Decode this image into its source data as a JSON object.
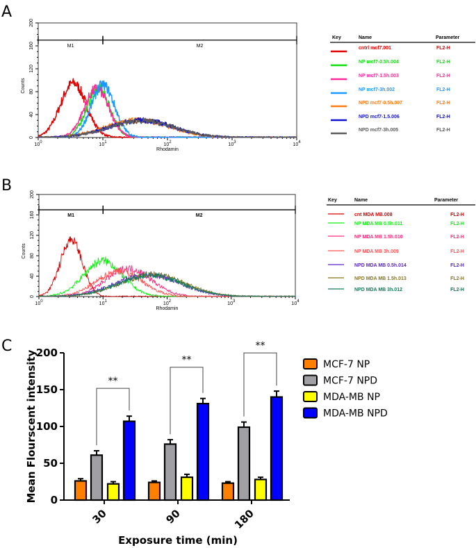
{
  "panels": {
    "a": "A",
    "b": "B",
    "c": "C"
  },
  "chart_data": [
    {
      "type": "line",
      "title": "",
      "xlabel": "Rhodamin",
      "ylabel": "Counts",
      "xscale": "log",
      "xlim": [
        1,
        10000
      ],
      "ylim": [
        0,
        200
      ],
      "xticks": [
        "10^0",
        "10^1",
        "10^2",
        "10^3",
        "10^4"
      ],
      "yticks": [
        "0",
        "40",
        "80",
        "120",
        "160",
        "200"
      ],
      "markers": [
        {
          "label": "M1",
          "range": [
            1,
            10
          ]
        },
        {
          "label": "M2",
          "range": [
            10,
            10000
          ]
        }
      ],
      "legend": {
        "headers": [
          "Key",
          "Name",
          "Parameter"
        ],
        "position": "right"
      },
      "series": [
        {
          "name": "cntrl mcf7.001",
          "parameter": "FL2-H",
          "color": "#e00000",
          "peak_rhodamin": 3.5,
          "peak_counts": 95,
          "spread": 0.2
        },
        {
          "name": "NP mcf7-0.5h.004",
          "parameter": "FL2-H",
          "color": "#10dd10",
          "peak_rhodamin": 8.5,
          "peak_counts": 85,
          "spread": 0.18
        },
        {
          "name": "NP mcf7-1.5h.003",
          "parameter": "FL2-H",
          "color": "#ff2a9a",
          "peak_rhodamin": 8,
          "peak_counts": 85,
          "spread": 0.19
        },
        {
          "name": "NP mcf7-3h.002",
          "parameter": "FL2-H",
          "color": "#1a98ff",
          "peak_rhodamin": 10,
          "peak_counts": 92,
          "spread": 0.18
        },
        {
          "name": "NPD mcf7-0.5h.007",
          "parameter": "FL2-H",
          "color": "#ff7a10",
          "peak_rhodamin": 35,
          "peak_counts": 30,
          "spread": 0.5
        },
        {
          "name": "NPD mcf7-1.5.006",
          "parameter": "FL2-H",
          "color": "#1010d0",
          "peak_rhodamin": 40,
          "peak_counts": 30,
          "spread": 0.5
        },
        {
          "name": "NPD mcf7-3h.005",
          "parameter": "FL2-H",
          "color": "#5a5a5a",
          "peak_rhodamin": 40,
          "peak_counts": 29,
          "spread": 0.5
        }
      ]
    },
    {
      "type": "line",
      "title": "",
      "xlabel": "Rhodamin",
      "ylabel": "Counts",
      "xscale": "log",
      "xlim": [
        1,
        10000
      ],
      "ylim": [
        0,
        200
      ],
      "xticks": [
        "10^0",
        "10^1",
        "10^2",
        "10^3",
        "10^4"
      ],
      "yticks": [
        "0",
        "40",
        "80",
        "120",
        "160",
        "200"
      ],
      "markers": [
        {
          "label": "M1",
          "range": [
            1,
            10
          ]
        },
        {
          "label": "M2",
          "range": [
            10,
            10000
          ]
        }
      ],
      "legend": {
        "headers": [
          "Key",
          "Name",
          "Parameter"
        ],
        "position": "right"
      },
      "series": [
        {
          "name": "cnt MDA MB.008",
          "parameter": "FL2-H",
          "color": "#d00000",
          "peak_rhodamin": 3.2,
          "peak_counts": 112,
          "spread": 0.17
        },
        {
          "name": "NP MDA MB 0.5h.011",
          "parameter": "FL2-H",
          "color": "#10ee10",
          "peak_rhodamin": 10,
          "peak_counts": 70,
          "spread": 0.3
        },
        {
          "name": "NP MDA MB 1.5h.010",
          "parameter": "FL2-H",
          "color": "#ff2a80",
          "peak_rhodamin": 25,
          "peak_counts": 55,
          "spread": 0.35
        },
        {
          "name": "NP MDA MB 3h.009",
          "parameter": "FL2-H",
          "color": "#ff5050",
          "peak_rhodamin": 18,
          "peak_counts": 50,
          "spread": 0.35
        },
        {
          "name": "NPD MDA MB 0.5h.014",
          "parameter": "FL2-H",
          "color": "#5a22c8",
          "peak_rhodamin": 50,
          "peak_counts": 43,
          "spread": 0.5
        },
        {
          "name": "NPD MDA MB 1.5h.013",
          "parameter": "FL2-H",
          "color": "#857520",
          "peak_rhodamin": 60,
          "peak_counts": 43,
          "spread": 0.5
        },
        {
          "name": "NPD MDA MB 3h.012",
          "parameter": "FL2-H",
          "color": "#107a5a",
          "peak_rhodamin": 55,
          "peak_counts": 42,
          "spread": 0.5
        }
      ]
    },
    {
      "type": "bar",
      "title": "",
      "xlabel": "Exposure time (min)",
      "ylabel": "Mean Flourscent intensity",
      "ylim": [
        0,
        200
      ],
      "yticks": [
        "0",
        "50",
        "100",
        "150",
        "200"
      ],
      "categories": [
        "30",
        "90",
        "180"
      ],
      "legend": {
        "position": "right"
      },
      "series": [
        {
          "name": "MCF-7 NP",
          "color": "#ff8000",
          "values": [
            26,
            24,
            23
          ],
          "errors": [
            3,
            2,
            2
          ]
        },
        {
          "name": "MCF-7 NPD",
          "color": "#a0a0a4",
          "values": [
            61,
            76,
            99
          ],
          "errors": [
            6,
            6,
            7
          ]
        },
        {
          "name": "MDA-MB NP",
          "color": "#ffff00",
          "values": [
            22,
            31,
            28
          ],
          "errors": [
            3,
            4,
            3
          ]
        },
        {
          "name": "MDA-MB NPD",
          "color": "#0000ff",
          "values": [
            107,
            131,
            140
          ],
          "errors": [
            7,
            7,
            8
          ]
        }
      ],
      "significance": [
        {
          "category": "30",
          "between": [
            "MCF-7 NPD",
            "MDA-MB NPD"
          ],
          "label": "**"
        },
        {
          "category": "90",
          "between": [
            "MCF-7 NPD",
            "MDA-MB NPD"
          ],
          "label": "**"
        },
        {
          "category": "180",
          "between": [
            "MCF-7 NPD",
            "MDA-MB NPD"
          ],
          "label": "**"
        }
      ]
    }
  ]
}
